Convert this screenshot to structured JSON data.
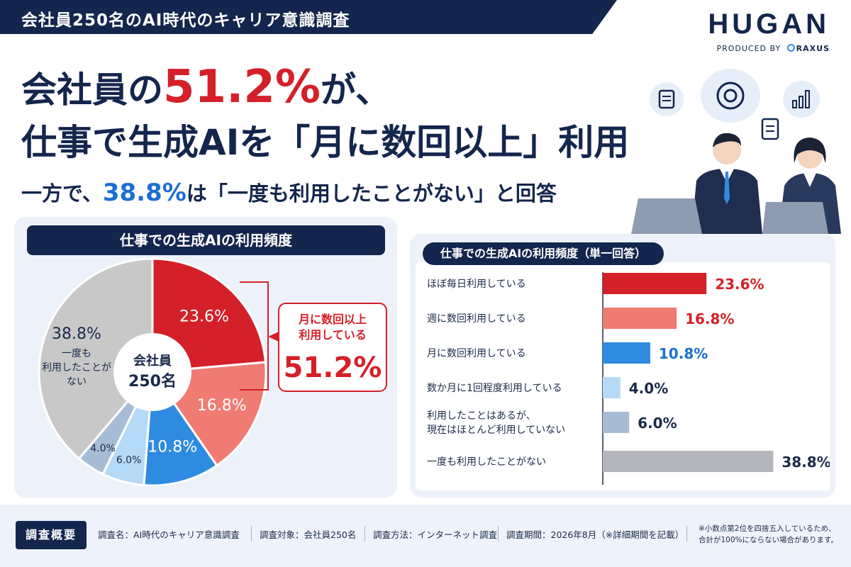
{
  "banner": {
    "title": "会社員250名のAI時代のキャリア意識調査"
  },
  "brand": {
    "logo": "HUGAN",
    "produced_by": "PRODUCED BY",
    "company": "RAXUS"
  },
  "headline": {
    "line1_pre": "会社員の",
    "line1_pct": "51.2%",
    "line1_post": "が、",
    "line2": "仕事で生成AIを「月に数回以上」利用",
    "line3_pre": "一方で、",
    "line3_pct": "38.8%",
    "line3_post": "は「一度も利用したことがない」と回答"
  },
  "pie_panel": {
    "title": "仕事での生成AIの利用頻度",
    "center_label_1": "会社員",
    "center_label_2": "250名",
    "callout_line1": "月に数回以上",
    "callout_line2": "利用している",
    "callout_value": "51.2%",
    "never_label_1": "一度も",
    "never_label_2": "利用したことが",
    "never_label_3": "ない"
  },
  "bar_panel": {
    "title": "仕事での生成AIの利用頻度（単一回答）"
  },
  "colors": {
    "navy": "#14264d",
    "red": "#d42028",
    "salmon": "#ef7b73",
    "blue": "#2f8be0",
    "light_blue": "#b5daf7",
    "gray_blue": "#a9bcd6",
    "gray": "#c8c8c8",
    "bar_gray": "#b3b5ba"
  },
  "chart_data": [
    {
      "type": "pie",
      "title": "仕事での生成AIの利用頻度",
      "categories": [
        "ほぼ毎日利用している",
        "週に数回利用している",
        "月に数回利用している",
        "数か月に1回程度利用している",
        "利用したことはあるが、現在はほとんど利用していない",
        "一度も利用したことがない"
      ],
      "values": [
        23.6,
        16.8,
        10.8,
        4.0,
        6.0,
        38.8
      ],
      "labels": [
        "23.6%",
        "16.8%",
        "10.8%",
        "4.0%",
        "6.0%",
        "38.8%"
      ],
      "colors": [
        "#d42028",
        "#ef7b73",
        "#2f8be0",
        "#a9bcd6",
        "#b5daf7",
        "#c8c8c8"
      ],
      "slice_order": [
        0,
        1,
        2,
        4,
        3,
        5
      ]
    },
    {
      "type": "bar",
      "orientation": "horizontal",
      "title": "仕事での生成AIの利用頻度（単一回答）",
      "categories": [
        "ほぼ毎日利用している",
        "週に数回利用している",
        "月に数回利用している",
        "数か月に1回程度利用している",
        "利用したことはあるが、\n現在はほとんど利用していない",
        "一度も利用したことがない"
      ],
      "values": [
        23.6,
        16.8,
        10.8,
        4.0,
        6.0,
        38.8
      ],
      "labels": [
        "23.6%",
        "16.8%",
        "10.8%",
        "4.0%",
        "6.0%",
        "38.8%"
      ],
      "colors": [
        "#d42028",
        "#ef7b73",
        "#2f8be0",
        "#b5daf7",
        "#a9bcd6",
        "#b3b5ba"
      ],
      "label_colors": [
        "#d42028",
        "#d42028",
        "#1d6fd0",
        "#1b2a4a",
        "#1b2a4a",
        "#1b2a4a"
      ],
      "xlim": [
        0,
        40
      ]
    }
  ],
  "footer": {
    "label": "調査概要",
    "items": [
      "調査名：AI時代のキャリア意識調査",
      "調査対象：会社員250名",
      "調査方法：インターネット調査",
      "調査期間：2026年8月（※詳細期間を記載）"
    ],
    "note_1": "※小数点第2位を四捨五入しているため、",
    "note_2": "合計が100%にならない場合があります。"
  }
}
